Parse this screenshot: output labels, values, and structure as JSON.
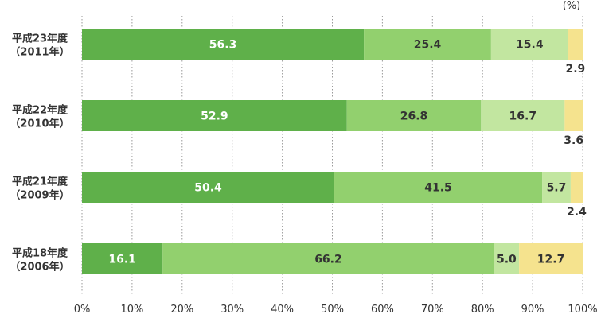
{
  "chart_data": {
    "type": "bar",
    "orientation": "horizontal",
    "stacked": true,
    "unit": "(%)",
    "categories": [
      [
        "平成23年度",
        "（2011年）"
      ],
      [
        "平成22年度",
        "（2010年）"
      ],
      [
        "平成21年度",
        "（2009年）"
      ],
      [
        "平成18年度",
        "（2006年）"
      ]
    ],
    "series": [
      {
        "values": [
          56.3,
          52.9,
          50.4,
          16.1
        ],
        "color": "#5fb04a",
        "label_color": "#ffffff"
      },
      {
        "values": [
          25.4,
          26.8,
          41.5,
          66.2
        ],
        "color": "#92d06e",
        "label_color": "#333333"
      },
      {
        "values": [
          15.4,
          16.7,
          5.7,
          5.0
        ],
        "color": "#c2e6a0",
        "label_color": "#333333"
      },
      {
        "values": [
          2.9,
          3.6,
          2.4,
          12.7
        ],
        "color": "#f5e38e",
        "label_color": "#333333"
      }
    ],
    "x_ticks": [
      "0%",
      "10%",
      "20%",
      "30%",
      "40%",
      "50%",
      "60%",
      "70%",
      "80%",
      "90%",
      "100%"
    ],
    "xlim": [
      0,
      100
    ],
    "grid": "vertical dotted"
  }
}
